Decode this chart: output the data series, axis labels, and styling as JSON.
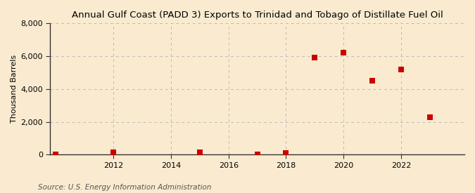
{
  "title": "Annual Gulf Coast (PADD 3) Exports to Trinidad and Tobago of Distillate Fuel Oil",
  "ylabel": "Thousand Barrels",
  "source": "Source: U.S. Energy Information Administration",
  "years": [
    2010,
    2012,
    2015,
    2017,
    2018,
    2019,
    2020,
    2021,
    2022,
    2023
  ],
  "values": [
    0,
    150,
    130,
    30,
    100,
    5900,
    6200,
    4500,
    5200,
    2300
  ],
  "marker_color": "#cc0000",
  "marker_size": 36,
  "bg_color": "#faebd0",
  "grid_color": "#bbbbbb",
  "ylim": [
    0,
    8000
  ],
  "yticks": [
    0,
    2000,
    4000,
    6000,
    8000
  ],
  "xlim": [
    2009.8,
    2024.2
  ],
  "xticks": [
    2012,
    2014,
    2016,
    2018,
    2020,
    2022
  ],
  "title_fontsize": 9.5,
  "label_fontsize": 8,
  "tick_fontsize": 8,
  "source_fontsize": 7.5
}
